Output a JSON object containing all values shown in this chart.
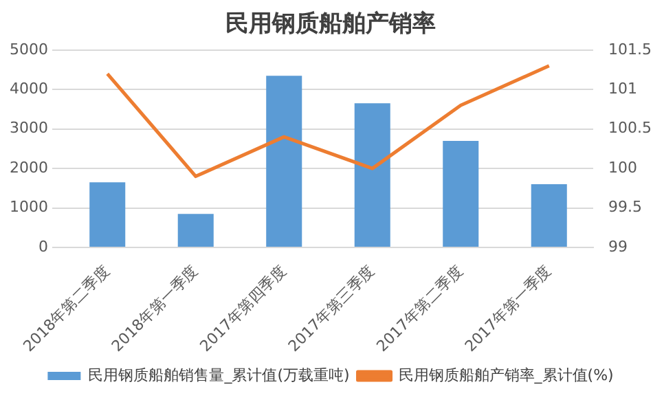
{
  "chart_data": {
    "type": "bar",
    "title": "民用钢质船舶产销率",
    "categories": [
      "2018年第二季度",
      "2018年第一季度",
      "2017年第四季度",
      "2017年第三季度",
      "2017年第二季度",
      "2017年第一季度"
    ],
    "series": [
      {
        "name": "民用钢质船舶销售量_累计值(万载重吨)",
        "color": "#5b9bd5",
        "values": [
          1650,
          850,
          4350,
          3650,
          2700,
          1600
        ]
      },
      {
        "name": "民用钢质船舶产销率_累计值(%)",
        "type": "line",
        "axis": "y2",
        "color": "#ed7d31",
        "values": [
          101.2,
          99.9,
          100.4,
          100.0,
          100.8,
          101.3
        ]
      }
    ],
    "ylim": [
      0,
      5000
    ],
    "yticks": [
      0,
      1000,
      2000,
      3000,
      4000,
      5000
    ],
    "y2lim": [
      99,
      101.5
    ],
    "y2ticks": [
      99,
      99.5,
      100,
      100.5,
      101,
      101.5
    ],
    "grid": "y",
    "legend": "bottom",
    "marker": "none"
  }
}
